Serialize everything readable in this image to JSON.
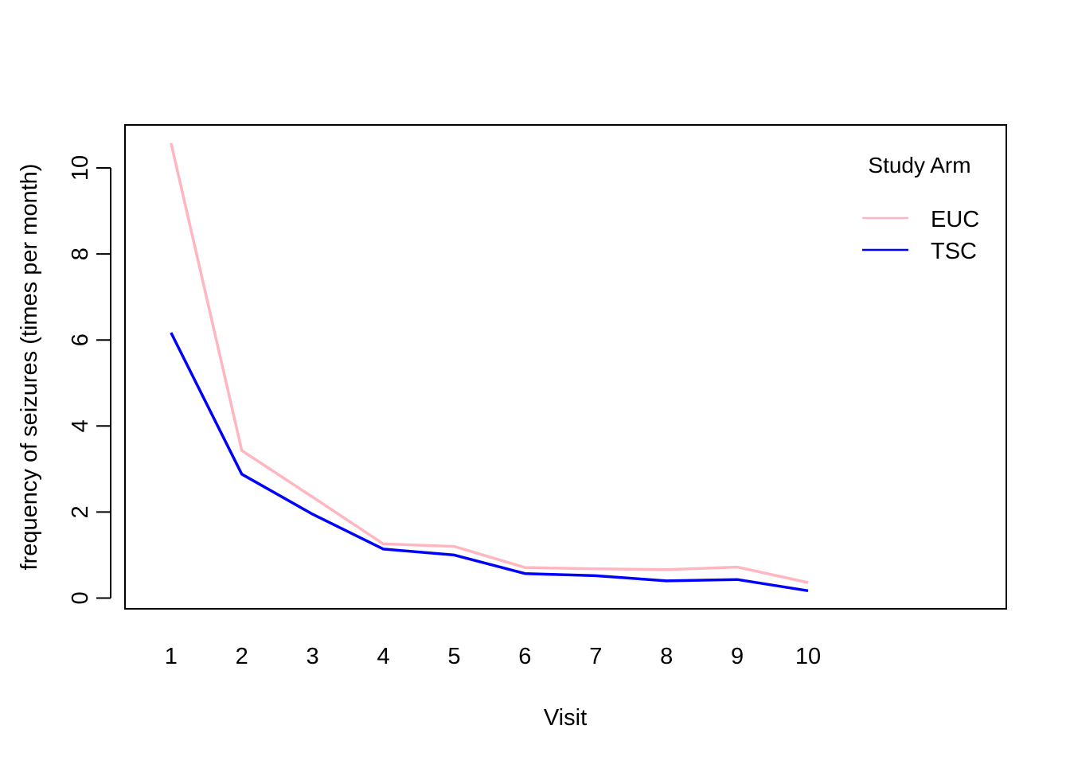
{
  "chart_data": {
    "type": "line",
    "title": "",
    "xlabel": "Visit",
    "ylabel": "frequency of seizures (times per month)",
    "x": [
      1,
      2,
      3,
      4,
      5,
      6,
      7,
      8,
      9,
      10
    ],
    "xlim": [
      0.35,
      12.8
    ],
    "ylim": [
      -0.25,
      11
    ],
    "yticks": [
      0,
      2,
      4,
      6,
      8,
      10
    ],
    "xticks": [
      1,
      2,
      3,
      4,
      5,
      6,
      7,
      8,
      9,
      10
    ],
    "grid": false,
    "legend": {
      "title": "Study Arm",
      "position": "top-right"
    },
    "series": [
      {
        "name": "EUC",
        "color": "#FFB6C1",
        "values": [
          10.58,
          3.43,
          2.35,
          1.26,
          1.2,
          0.71,
          0.68,
          0.66,
          0.72,
          0.36
        ]
      },
      {
        "name": "TSC",
        "color": "#0000FF",
        "values": [
          6.17,
          2.88,
          1.95,
          1.14,
          1.0,
          0.57,
          0.52,
          0.4,
          0.43,
          0.17
        ]
      }
    ]
  }
}
